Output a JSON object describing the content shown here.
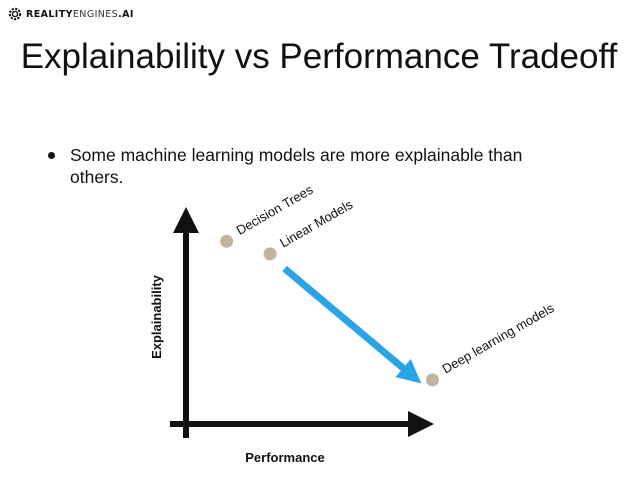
{
  "logo": {
    "brand_bold": "REALITY",
    "brand_light": "ENGINES",
    "brand_suffix": ".AI",
    "icon": "gear-logo-icon"
  },
  "slide": {
    "title": "Explainability vs Performance Tradeoff",
    "bullet": "Some machine learning models are more explainable than others."
  },
  "chart_data": {
    "type": "scatter",
    "xlabel": "Performance",
    "ylabel": "Explainability",
    "grid": false,
    "points": [
      {
        "label": "Decision Trees",
        "x": 0.14,
        "y": 0.87
      },
      {
        "label": "Linear Models",
        "x": 0.29,
        "y": 0.81
      },
      {
        "label": "Deep learning models",
        "x": 0.85,
        "y": 0.21
      }
    ],
    "trend_arrow": {
      "from": [
        0.34,
        0.74
      ],
      "to": [
        0.78,
        0.23
      ],
      "color": "#2aa3e8"
    },
    "colors": {
      "point": "#c0b59c",
      "axis": "#111111"
    }
  }
}
